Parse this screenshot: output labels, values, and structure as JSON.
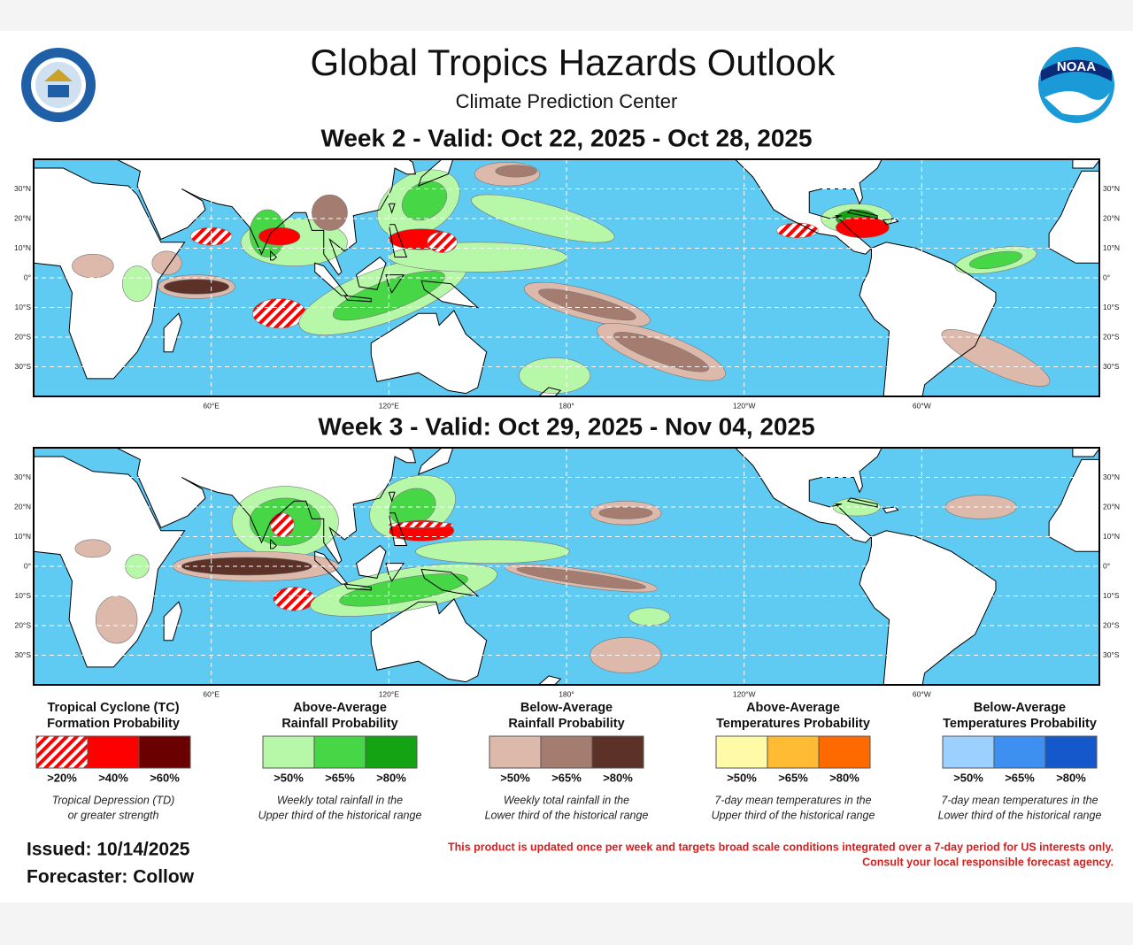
{
  "header": {
    "title": "Global Tropics Hazards Outlook",
    "subtitle": "Climate Prediction Center",
    "logo_text": "NOAA"
  },
  "lat_labels": [
    "30°N",
    "20°N",
    "10°N",
    "0°",
    "10°S",
    "20°S",
    "30°S"
  ],
  "lon_labels": [
    "60°E",
    "120°E",
    "180°",
    "120°W",
    "60°W"
  ],
  "panels": [
    {
      "title": "Week 2 - Valid: Oct 22, 2025 - Oct 28, 2025"
    },
    {
      "title": "Week 3 - Valid: Oct 29, 2025 - Nov 04, 2025"
    }
  ],
  "legend": [
    {
      "title": [
        "Tropical Cyclone (TC)",
        "Formation Probability"
      ],
      "labels": [
        ">20%",
        ">40%",
        ">60%"
      ],
      "note": [
        "Tropical Depression (TD)",
        "or greater strength"
      ]
    },
    {
      "title": [
        "Above-Average",
        "Rainfall Probability"
      ],
      "labels": [
        ">50%",
        ">65%",
        ">80%"
      ],
      "note": [
        "Weekly total rainfall in the",
        "Upper third of the historical range"
      ]
    },
    {
      "title": [
        "Below-Average",
        "Rainfall Probability"
      ],
      "labels": [
        ">50%",
        ">65%",
        ">80%"
      ],
      "note": [
        "Weekly total rainfall in the",
        "Lower third of the historical range"
      ]
    },
    {
      "title": [
        "Above-Average",
        "Temperatures Probability"
      ],
      "labels": [
        ">50%",
        ">65%",
        ">80%"
      ],
      "note": [
        "7-day mean temperatures in the",
        "Upper third of the historical range"
      ]
    },
    {
      "title": [
        "Below-Average",
        "Temperatures Probability"
      ],
      "labels": [
        ">50%",
        ">65%",
        ">80%"
      ],
      "note": [
        "7-day mean temperatures in the",
        "Lower third of the historical range"
      ]
    }
  ],
  "footer": {
    "issued": "Issued: 10/14/2025",
    "forecaster": "Forecaster: Collow",
    "disclaimer": [
      "This product is updated once per week and targets broad scale conditions integrated over a 7-day period for US interests only.",
      "Consult your local responsible forecast agency."
    ]
  }
}
